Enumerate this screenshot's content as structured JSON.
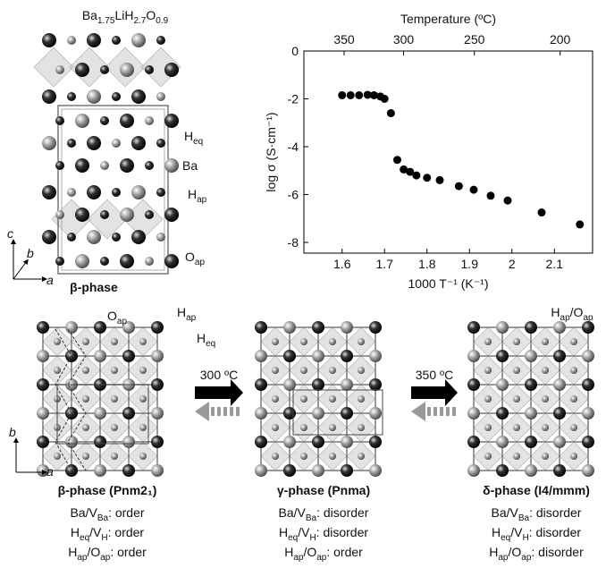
{
  "structure_top": {
    "formula": [
      "Ba",
      "1.75",
      "LiH",
      "2.7",
      "O",
      "0.9"
    ],
    "labels": [
      [
        "H",
        "eq"
      ],
      [
        "Ba"
      ],
      [
        "H",
        "ap"
      ],
      [
        "O",
        "ap"
      ]
    ],
    "axes": [
      "c",
      "b",
      "a"
    ],
    "phase": "β-phase"
  },
  "chart_data": {
    "type": "scatter",
    "x_label": "1000 T⁻¹ (K⁻¹)",
    "y_label": "log σ (S·cm⁻¹)",
    "x2_label": "Temperature (ºC)",
    "x": [
      1.6,
      1.62,
      1.64,
      1.66,
      1.675,
      1.69,
      1.7,
      1.715,
      1.73,
      1.745,
      1.76,
      1.775,
      1.8,
      1.83,
      1.875,
      1.91,
      1.95,
      1.99,
      2.07,
      2.16
    ],
    "values": [
      -1.85,
      -1.85,
      -1.85,
      -1.83,
      -1.85,
      -1.9,
      -2.0,
      -2.6,
      -4.55,
      -4.95,
      -5.05,
      -5.2,
      -5.3,
      -5.4,
      -5.65,
      -5.8,
      -6.05,
      -6.25,
      -6.75,
      -7.25
    ],
    "color": "#000000",
    "xlim": [
      1.51,
      2.19
    ],
    "ylim": [
      -8.45,
      0
    ],
    "xticks": [
      1.6,
      1.7,
      1.8,
      1.9,
      2.0,
      2.1
    ],
    "yticks": [
      0,
      -2,
      -4,
      -6,
      -8
    ],
    "x2ticks": [
      350,
      300,
      250,
      200
    ]
  },
  "transitions": [
    {
      "label": "300 ºC"
    },
    {
      "label": "350 ºC"
    }
  ],
  "bottom_axes": [
    "b",
    "a"
  ],
  "bottom_labels": [
    [
      "O",
      "ap"
    ],
    [
      "H",
      "ap"
    ],
    [
      "H",
      "eq"
    ],
    [
      "H",
      "ap",
      "/O",
      "ap"
    ]
  ],
  "phases": [
    {
      "title": "β-phase (Pnm2₁)",
      "lines": [
        [
          "Ba/V",
          "Ba",
          ": order"
        ],
        [
          "H",
          "eq",
          "/V",
          "H",
          ": order"
        ],
        [
          "H",
          "ap",
          "/O",
          "ap",
          ": order"
        ]
      ]
    },
    {
      "title": "γ-phase (Pnma)",
      "lines": [
        [
          "Ba/V",
          "Ba",
          ": disorder"
        ],
        [
          "H",
          "eq",
          "/V",
          "H",
          ": disorder"
        ],
        [
          "H",
          "ap",
          "/O",
          "ap",
          ": order"
        ]
      ]
    },
    {
      "title": "δ-phase (I4/mmm)",
      "lines": [
        [
          "Ba/V",
          "Ba",
          ": disorder"
        ],
        [
          "H",
          "eq",
          "/V",
          "H",
          ": disorder"
        ],
        [
          "H",
          "ap",
          "/O",
          "ap",
          ": disorder"
        ]
      ]
    }
  ]
}
